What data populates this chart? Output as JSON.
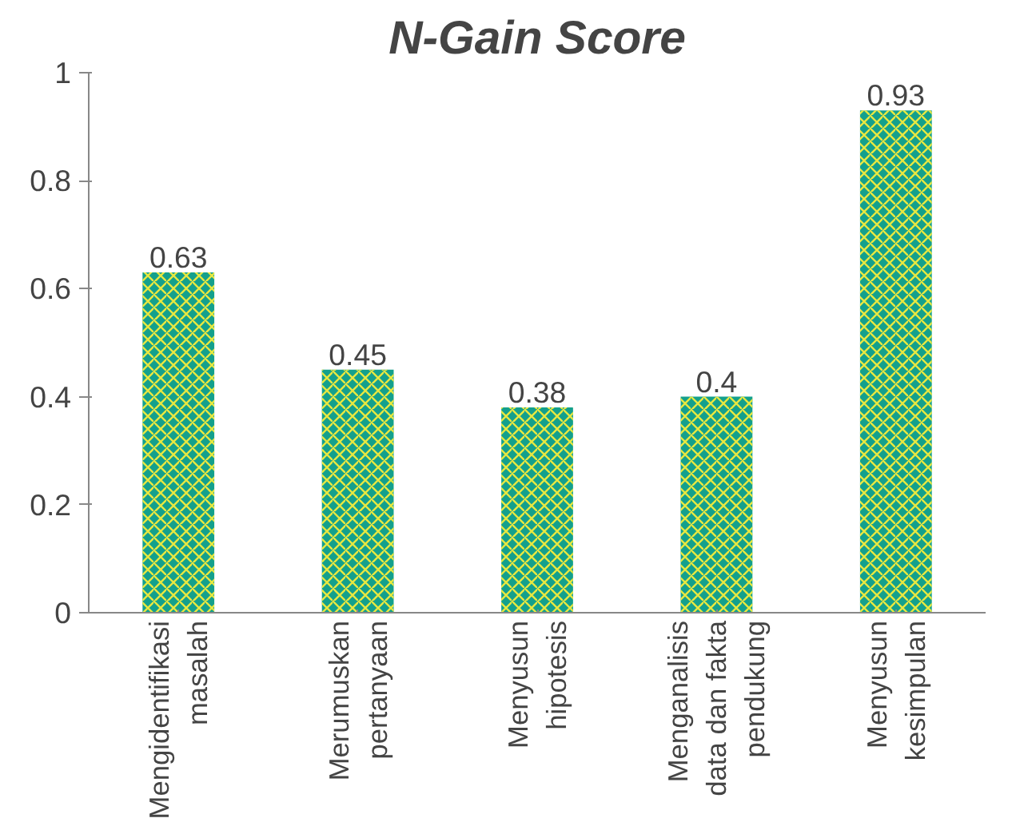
{
  "chart_data": {
    "type": "bar",
    "title": "N-Gain Score",
    "categories": [
      "Mengidentifikasi\nmasalah",
      "Merumuskan\npertanyaan",
      "Menyusun\nhipotesis",
      "Menganalisis\ndata dan fakta\npendukung",
      "Menyusun\nkesimpulan"
    ],
    "values": [
      0.63,
      0.45,
      0.38,
      0.4,
      0.93
    ],
    "color": "#14a08c",
    "ylim": [
      0,
      1
    ],
    "yticks": [
      0,
      0.2,
      0.4,
      0.6,
      0.8,
      1
    ],
    "grid": false,
    "data_labels": true
  }
}
